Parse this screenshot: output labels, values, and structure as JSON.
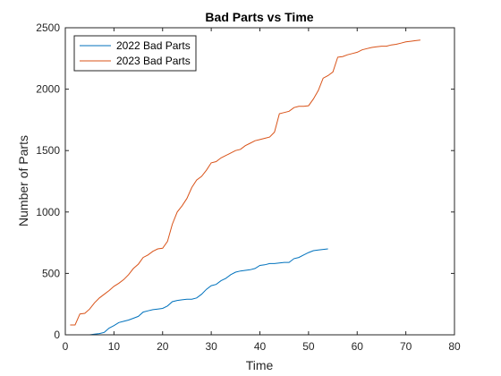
{
  "chart_data": {
    "type": "line",
    "title": "Bad Parts vs Time",
    "xlabel": "Time",
    "ylabel": "Number of Parts",
    "xlim": [
      0,
      80
    ],
    "ylim": [
      0,
      2500
    ],
    "xticks": [
      "0",
      "10",
      "20",
      "30",
      "40",
      "50",
      "60",
      "70",
      "80"
    ],
    "yticks": [
      "0",
      "500",
      "1000",
      "1500",
      "2000",
      "2500"
    ],
    "grid": false,
    "legend_position": "top-left",
    "series": [
      {
        "name": "2022 Bad Parts",
        "color": "#0072BD",
        "x": [
          1,
          2,
          3,
          4,
          5,
          6,
          7,
          8,
          9,
          10,
          11,
          12,
          13,
          14,
          15,
          16,
          17,
          18,
          19,
          20,
          21,
          22,
          23,
          24,
          25,
          26,
          27,
          28,
          29,
          30,
          31,
          32,
          33,
          34,
          35,
          36,
          37,
          38,
          39,
          40,
          41,
          42,
          43,
          44,
          45,
          46,
          47,
          48,
          49,
          50,
          51,
          52,
          53,
          54
        ],
        "y": [
          0,
          0,
          0,
          0,
          0,
          5,
          10,
          20,
          55,
          75,
          100,
          110,
          120,
          135,
          150,
          185,
          195,
          205,
          210,
          215,
          235,
          270,
          280,
          285,
          290,
          290,
          300,
          330,
          370,
          400,
          410,
          440,
          460,
          490,
          510,
          520,
          525,
          530,
          540,
          565,
          570,
          580,
          580,
          585,
          590,
          590,
          620,
          630,
          650,
          670,
          685,
          690,
          695,
          700
        ]
      },
      {
        "name": "2023 Bad Parts",
        "color": "#D95319",
        "x": [
          1,
          2,
          3,
          4,
          5,
          6,
          7,
          8,
          9,
          10,
          11,
          12,
          13,
          14,
          15,
          16,
          17,
          18,
          19,
          20,
          21,
          22,
          23,
          24,
          25,
          26,
          27,
          28,
          29,
          30,
          31,
          32,
          33,
          34,
          35,
          36,
          37,
          38,
          39,
          40,
          41,
          42,
          43,
          44,
          45,
          46,
          47,
          48,
          49,
          50,
          51,
          52,
          53,
          54,
          55,
          56,
          57,
          58,
          59,
          60,
          61,
          62,
          63,
          64,
          65,
          66,
          67,
          68,
          69,
          70,
          71,
          72,
          73
        ],
        "y": [
          80,
          80,
          170,
          175,
          210,
          260,
          300,
          330,
          360,
          395,
          420,
          450,
          490,
          540,
          575,
          630,
          650,
          680,
          700,
          705,
          760,
          900,
          1000,
          1050,
          1110,
          1200,
          1260,
          1290,
          1340,
          1400,
          1410,
          1440,
          1460,
          1480,
          1500,
          1510,
          1540,
          1560,
          1580,
          1590,
          1600,
          1610,
          1650,
          1800,
          1810,
          1820,
          1850,
          1860,
          1860,
          1865,
          1920,
          1990,
          2090,
          2110,
          2140,
          2260,
          2265,
          2280,
          2290,
          2300,
          2320,
          2330,
          2340,
          2345,
          2350,
          2350,
          2360,
          2365,
          2375,
          2385,
          2390,
          2395,
          2400
        ]
      }
    ]
  }
}
